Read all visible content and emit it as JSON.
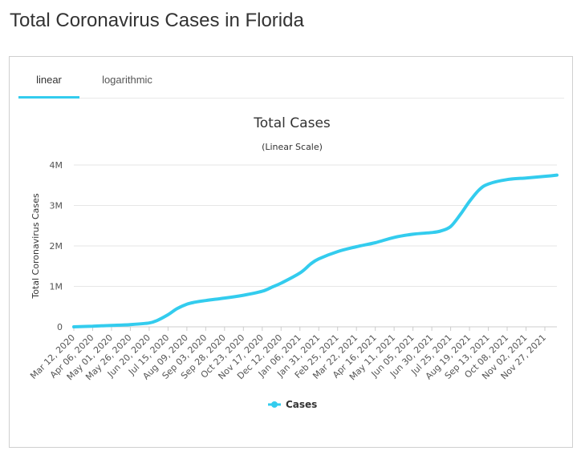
{
  "page": {
    "title": "Total Coronavirus Cases in Florida"
  },
  "tabs": [
    {
      "label": "linear",
      "active": true
    },
    {
      "label": "logarithmic",
      "active": false
    }
  ],
  "colors": {
    "accent": "#33ccee",
    "series": "#33ccee"
  },
  "chart_data": {
    "type": "line",
    "title": "Total Cases",
    "subtitle": "(Linear Scale)",
    "ylabel": "Total Coronavirus Cases",
    "xlabel": "",
    "ylim": [
      0,
      4000000
    ],
    "y_ticks": [
      {
        "value": 0,
        "label": "0"
      },
      {
        "value": 1000000,
        "label": "1M"
      },
      {
        "value": 2000000,
        "label": "2M"
      },
      {
        "value": 3000000,
        "label": "3M"
      },
      {
        "value": 4000000,
        "label": "4M"
      }
    ],
    "x_ticks": [
      "Mar 12, 2020",
      "Apr 06, 2020",
      "May 01, 2020",
      "May 26, 2020",
      "Jun 20, 2020",
      "Jul 15, 2020",
      "Aug 09, 2020",
      "Sep 03, 2020",
      "Sep 28, 2020",
      "Oct 23, 2020",
      "Nov 17, 2020",
      "Dec 12, 2020",
      "Jan 06, 2021",
      "Jan 31, 2021",
      "Feb 25, 2021",
      "Mar 22, 2021",
      "Apr 16, 2021",
      "May 11, 2021",
      "Jun 05, 2021",
      "Jun 30, 2021",
      "Jul 25, 2021",
      "Aug 19, 2021",
      "Sep 13, 2021",
      "Oct 08, 2021",
      "Nov 02, 2021",
      "Nov 27, 2021"
    ],
    "x_range": [
      "Mar 12, 2020",
      "Dec 13, 2021"
    ],
    "grid": true,
    "legend": "bottom-center",
    "series": [
      {
        "name": "Cases",
        "color": "#33ccee",
        "x": [
          "Mar 12, 2020",
          "Apr 06, 2020",
          "May 01, 2020",
          "May 26, 2020",
          "Jun 20, 2020",
          "Jul 01, 2020",
          "Jul 15, 2020",
          "Jul 27, 2020",
          "Aug 09, 2020",
          "Aug 20, 2020",
          "Sep 03, 2020",
          "Sep 28, 2020",
          "Oct 23, 2020",
          "Nov 17, 2020",
          "Dec 01, 2020",
          "Dec 12, 2020",
          "Jan 06, 2021",
          "Jan 20, 2021",
          "Jan 31, 2021",
          "Feb 25, 2021",
          "Mar 22, 2021",
          "Apr 16, 2021",
          "May 11, 2021",
          "Jun 05, 2021",
          "Jun 30, 2021",
          "Jul 12, 2021",
          "Jul 25, 2021",
          "Aug 07, 2021",
          "Aug 19, 2021",
          "Sep 01, 2021",
          "Sep 13, 2021",
          "Oct 08, 2021",
          "Nov 02, 2021",
          "Nov 27, 2021",
          "Dec 13, 2021"
        ],
        "values": [
          0,
          15000,
          35000,
          55000,
          95000,
          160000,
          300000,
          450000,
          560000,
          610000,
          650000,
          710000,
          780000,
          880000,
          990000,
          1080000,
          1330000,
          1550000,
          1680000,
          1860000,
          1980000,
          2080000,
          2210000,
          2290000,
          2330000,
          2370000,
          2480000,
          2780000,
          3100000,
          3390000,
          3530000,
          3640000,
          3680000,
          3720000,
          3750000
        ]
      }
    ]
  }
}
